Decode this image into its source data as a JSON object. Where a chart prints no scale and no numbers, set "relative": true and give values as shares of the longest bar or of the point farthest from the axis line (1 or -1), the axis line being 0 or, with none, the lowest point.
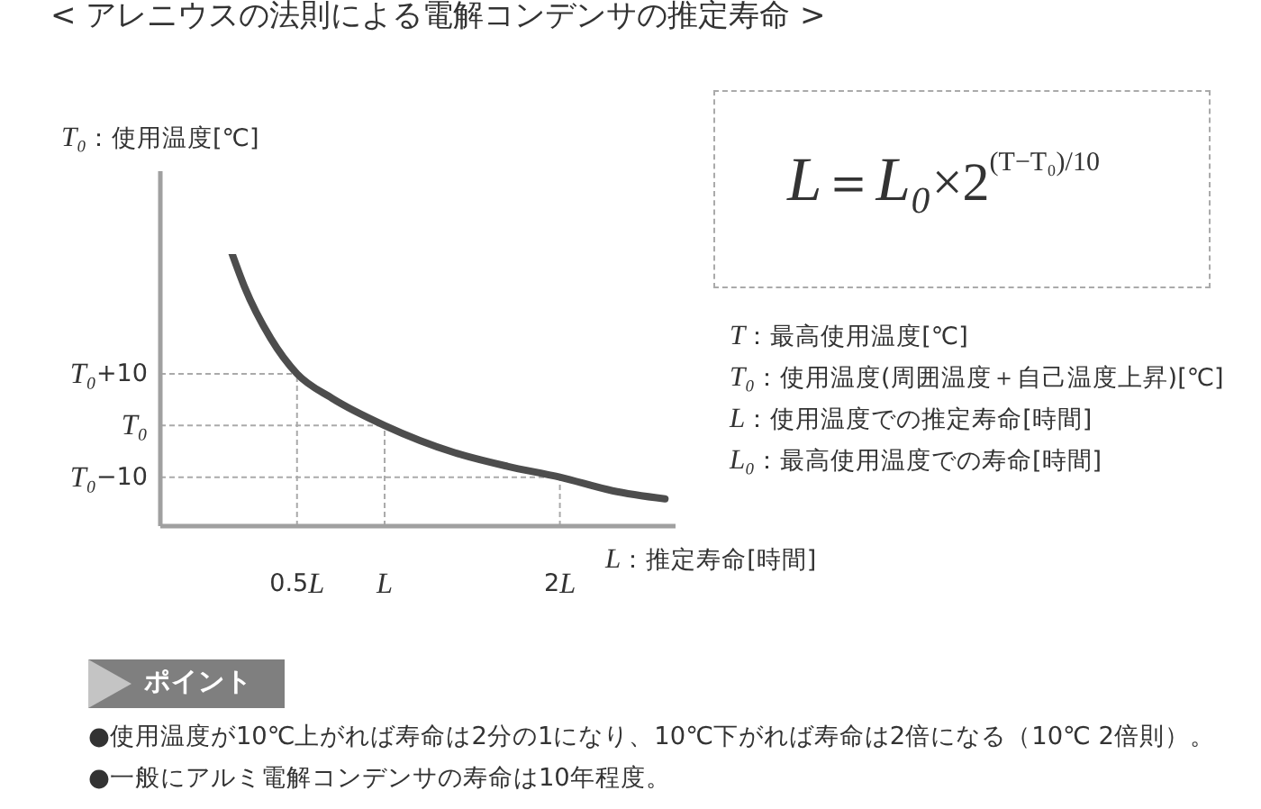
{
  "chart_data": {
    "type": "line",
    "title": "< アレニウスの法則による電解コンデンサの推定寿命 >",
    "xlabel": "L：推定寿命[時間]",
    "ylabel": "T₀：使用温度[℃]",
    "x": [
      0.13,
      0.2,
      0.35,
      0.5,
      0.7,
      1,
      1.4,
      1.7,
      2,
      2.3,
      2.6
    ],
    "series": [
      {
        "color": "#4d4d4d",
        "values": [
          1,
          0.88,
          0.69,
          0.56,
          0.47,
          0.37,
          0.27,
          0.22,
          0.18,
          0.13,
          0.1
        ]
      }
    ],
    "relative": true,
    "xlim": [
      -0.28,
      2.66
    ],
    "xticks": [
      {
        "value": 0.5,
        "label": "0.5L"
      },
      {
        "value": 1,
        "label": "L"
      },
      {
        "value": 2,
        "label": "2L"
      }
    ],
    "marker": "none",
    "line_style": "solid",
    "ref_lines": [
      {
        "axis": "y",
        "value": 0.56,
        "label": "T₀+10",
        "color": "#aaaaaa",
        "line_style": "dashed"
      },
      {
        "axis": "y",
        "value": 0.37,
        "label": "T₀",
        "color": "#aaaaaa",
        "line_style": "dashed"
      },
      {
        "axis": "y",
        "value": 0.18,
        "label": "T₀−10",
        "color": "#aaaaaa",
        "line_style": "dashed"
      },
      {
        "axis": "x",
        "value": 0.5,
        "color": "#aaaaaa",
        "line_style": "dashed"
      },
      {
        "axis": "x",
        "value": 1,
        "color": "#aaaaaa",
        "line_style": "dashed"
      },
      {
        "axis": "x",
        "value": 2,
        "color": "#aaaaaa",
        "line_style": "dashed"
      }
    ],
    "annotations": [
      "L＝L₀×2$^{(T−T₀)/10}$",
      "T：最高使用温度[℃]",
      "T₀：使用温度(周囲温度＋自己温度上昇)[℃]",
      "L：使用温度での推定寿命[時間]",
      "L₀：最高使用温度での寿命[時間]",
      "ポイント",
      "●使用温度が10℃上がれば寿命は2分の1になり、10℃下がれば寿命は2倍になる（10℃ 2倍則）。",
      "●一般にアルミ電解コンデンサの寿命は10年程度。"
    ]
  }
}
